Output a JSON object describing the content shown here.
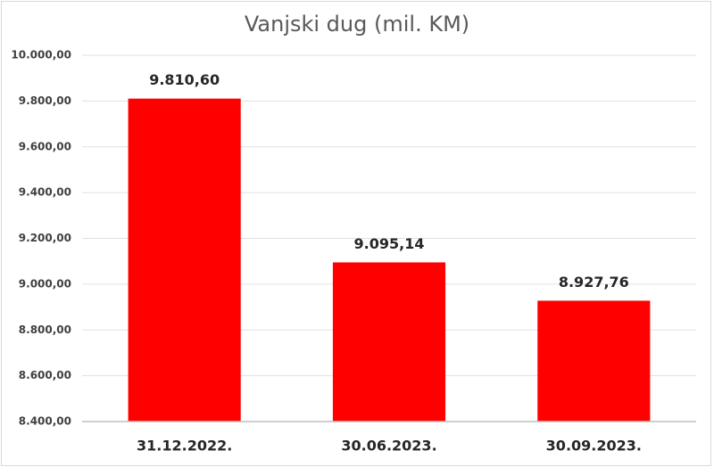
{
  "chart_data": {
    "type": "bar",
    "title": "Vanjski dug (mil. KM)",
    "categories": [
      "31.12.2022.",
      "30.06.2023.",
      "30.09.2023."
    ],
    "values": [
      9810.6,
      9095.14,
      8927.76
    ],
    "value_labels": [
      "9.810,60",
      "9.095,14",
      "8.927,76"
    ],
    "color": "#ff0000",
    "ylim": [
      8400,
      10000
    ],
    "yticks": [
      {
        "value": 8400,
        "label": "8.400,00"
      },
      {
        "value": 8600,
        "label": "8.600,00"
      },
      {
        "value": 8800,
        "label": "8.800,00"
      },
      {
        "value": 9000,
        "label": "9.000,00"
      },
      {
        "value": 9200,
        "label": "9.200,00"
      },
      {
        "value": 9400,
        "label": "9.400,00"
      },
      {
        "value": 9600,
        "label": "9.600,00"
      },
      {
        "value": 9800,
        "label": "9.800,00"
      },
      {
        "value": 10000,
        "label": "10.000,00"
      }
    ],
    "grid": true
  }
}
